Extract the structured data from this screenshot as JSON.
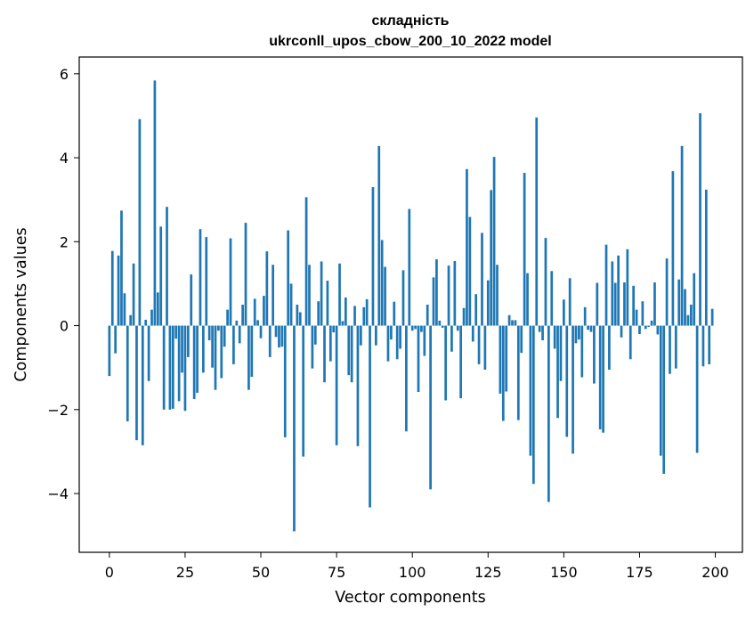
{
  "chart_data": {
    "type": "bar",
    "title": "складність",
    "subtitle": "ukrconll_upos_cbow_200_10_2022 model",
    "xlabel": "Vector components",
    "ylabel": "Components values",
    "xlim": [
      -9.95,
      208.95
    ],
    "ylim": [
      -5.4,
      6.4
    ],
    "xticks": [
      0,
      25,
      50,
      75,
      100,
      125,
      150,
      175,
      200
    ],
    "yticks": [
      -4,
      -2,
      0,
      2,
      4,
      6
    ],
    "bar_color": "#1f77b4",
    "grid": false,
    "values": [
      -1.2,
      1.78,
      -0.66,
      1.67,
      2.74,
      0.77,
      -2.28,
      0.25,
      1.48,
      -2.73,
      4.92,
      -2.85,
      0.14,
      -1.32,
      0.38,
      5.84,
      0.79,
      2.36,
      -2.0,
      2.83,
      -2.0,
      -1.98,
      -0.31,
      -1.8,
      -1.12,
      -2.03,
      -0.75,
      1.22,
      -1.75,
      -1.6,
      2.3,
      -1.12,
      2.11,
      -0.35,
      -1.0,
      -1.53,
      -0.12,
      -1.25,
      -0.5,
      0.38,
      2.08,
      -0.92,
      0.12,
      -0.42,
      0.5,
      2.45,
      -1.53,
      -1.22,
      0.64,
      0.13,
      -0.3,
      0.71,
      1.77,
      -0.75,
      1.45,
      -0.27,
      -0.52,
      -0.5,
      -2.66,
      2.27,
      1.0,
      -4.9,
      0.5,
      0.32,
      -3.12,
      3.06,
      1.45,
      -1.02,
      -0.45,
      0.58,
      1.53,
      -1.35,
      1.07,
      -0.85,
      -0.16,
      -2.85,
      1.48,
      0.11,
      0.67,
      -1.18,
      -1.35,
      0.47,
      -2.87,
      -0.47,
      0.44,
      0.63,
      -4.33,
      3.3,
      -0.47,
      4.28,
      2.04,
      1.4,
      -0.85,
      -0.33,
      0.57,
      -0.8,
      -0.55,
      1.32,
      -2.52,
      2.78,
      -0.12,
      -0.08,
      -1.58,
      -0.15,
      -0.72,
      0.5,
      -3.9,
      1.15,
      1.58,
      0.12,
      -0.05,
      -1.78,
      1.43,
      -0.62,
      1.54,
      -0.12,
      -1.73,
      0.42,
      3.73,
      2.59,
      -0.38,
      0.75,
      -0.92,
      2.21,
      -1.05,
      1.08,
      3.23,
      4.02,
      1.45,
      -1.62,
      -2.27,
      -1.57,
      0.25,
      0.13,
      0.13,
      -2.25,
      -0.65,
      3.64,
      1.25,
      -3.1,
      -3.77,
      4.96,
      -0.15,
      -0.35,
      2.09,
      -4.2,
      1.3,
      -0.55,
      -2.2,
      -1.32,
      0.62,
      -2.65,
      1.13,
      -3.05,
      -0.42,
      -0.33,
      -1.23,
      0.44,
      -0.1,
      -0.15,
      -1.38,
      1.02,
      -2.47,
      -2.55,
      1.93,
      -1.05,
      1.53,
      1.02,
      1.67,
      -0.28,
      1.03,
      1.82,
      -0.8,
      0.95,
      0.38,
      -0.2,
      0.58,
      -0.08,
      -0.03,
      0.12,
      1.03,
      -0.21,
      -3.1,
      -3.53,
      1.6,
      -1.15,
      3.68,
      -1.02,
      1.1,
      4.28,
      0.87,
      0.25,
      0.5,
      1.25,
      -3.03,
      5.06,
      -0.97,
      3.24,
      -0.92,
      0.4
    ]
  }
}
